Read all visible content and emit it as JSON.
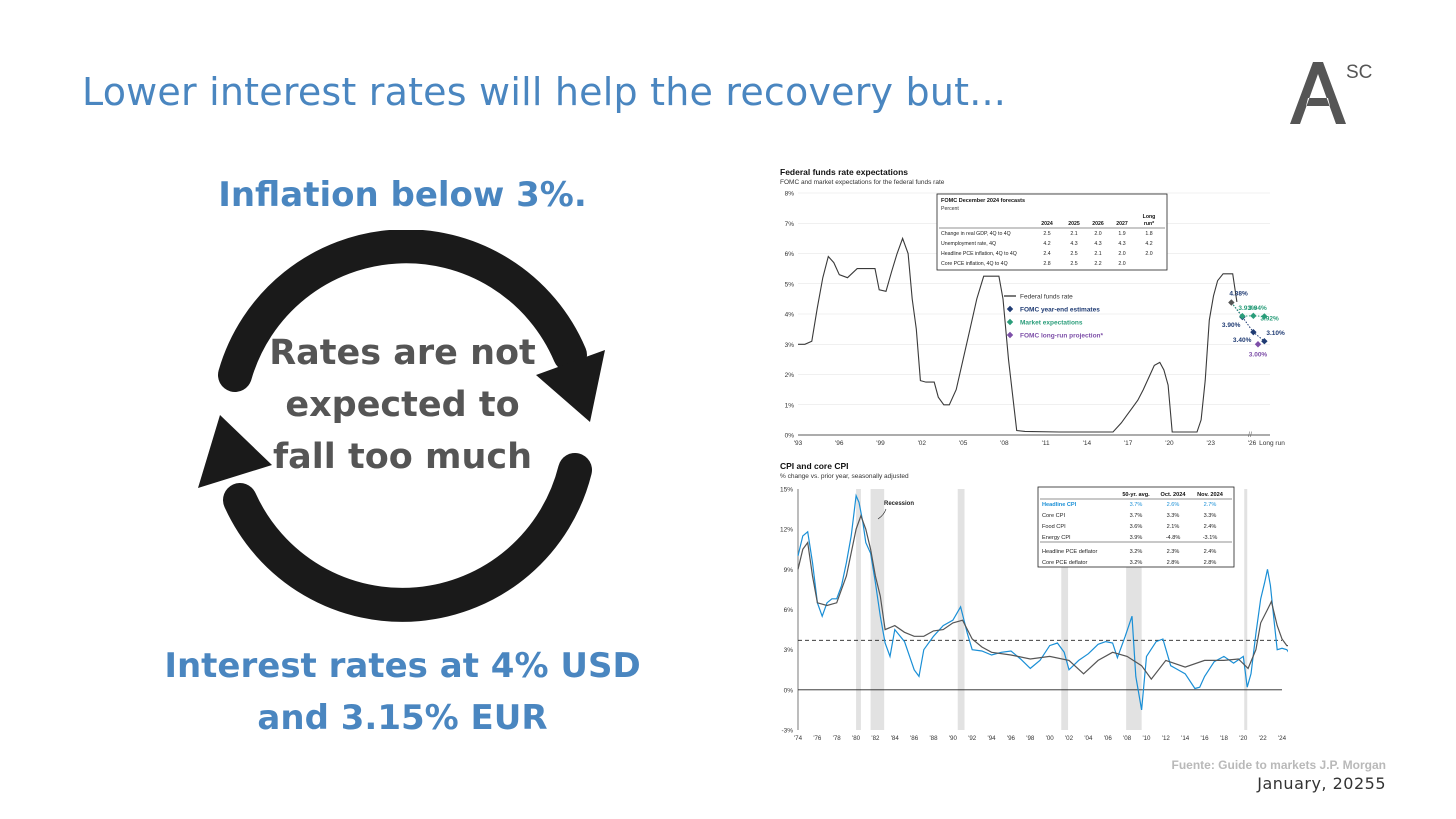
{
  "slide": {
    "title": "Lower interest rates will help the recovery but...",
    "logo_letter": "A",
    "logo_sup": "SC",
    "headline_top": "Inflation below 3%.",
    "center_text_lines": [
      "Rates are not",
      "expected to",
      "fall too much"
    ],
    "headline_bottom_lines": [
      "Interest rates at 4% USD",
      "and 3.15% EUR"
    ],
    "source": "Fuente: Guide to markets J.P. Morgan",
    "date": "January, 20255"
  },
  "colors": {
    "accent": "#4a86c0",
    "arrows": "#1a1a1a",
    "fomc": "#1f3b73",
    "market": "#2a9d7a",
    "longrun": "#7d4fa8",
    "headline_cpi": "#1a8fd6",
    "core_cpi": "#555555"
  },
  "chart_data": [
    {
      "type": "line",
      "title": "Federal funds rate expectations",
      "subtitle": "FOMC and market expectations for the federal funds rate",
      "ylim": [
        0,
        8
      ],
      "yticks": [
        "0%",
        "1%",
        "2%",
        "3%",
        "4%",
        "5%",
        "6%",
        "7%",
        "8%"
      ],
      "xticks": [
        "'93",
        "'96",
        "'99",
        "'02",
        "'05",
        "'08",
        "'11",
        "'14",
        "'17",
        "'20",
        "'23",
        "'26",
        "Long run"
      ],
      "legend": [
        "Federal funds rate",
        "FOMC year-end estimates",
        "Market expectations",
        "FOMC long-run projection*"
      ],
      "series": [
        {
          "name": "Federal funds rate",
          "x": [
            1993.0,
            1993.5,
            1994.0,
            1994.4,
            1994.8,
            1995.2,
            1995.6,
            1996.0,
            1996.6,
            1997.3,
            1998.0,
            1998.6,
            1998.9,
            1999.4,
            1999.8,
            2000.2,
            2000.6,
            2001.0,
            2001.3,
            2001.6,
            2001.9,
            2002.3,
            2002.9,
            2003.2,
            2003.6,
            2004.0,
            2004.5,
            2005.0,
            2005.5,
            2006.0,
            2006.5,
            2007.0,
            2007.6,
            2007.9,
            2008.3,
            2008.9,
            2009.5,
            2012.0,
            2015.9,
            2016.5,
            2016.9,
            2017.3,
            2017.7,
            2018.1,
            2018.5,
            2018.9,
            2019.3,
            2019.6,
            2019.9,
            2020.2,
            2021.5,
            2022.0,
            2022.3,
            2022.6,
            2022.9,
            2023.2,
            2023.5,
            2023.9,
            2024.6,
            2024.9
          ],
          "values": [
            3.0,
            3.0,
            3.1,
            4.2,
            5.2,
            5.9,
            5.7,
            5.3,
            5.2,
            5.5,
            5.5,
            5.5,
            4.8,
            4.75,
            5.4,
            6.0,
            6.5,
            6.0,
            4.5,
            3.5,
            1.8,
            1.75,
            1.75,
            1.25,
            1.0,
            1.0,
            1.5,
            2.5,
            3.5,
            4.5,
            5.25,
            5.25,
            5.25,
            4.5,
            2.5,
            0.15,
            0.12,
            0.1,
            0.1,
            0.4,
            0.65,
            0.9,
            1.15,
            1.5,
            1.9,
            2.3,
            2.4,
            2.15,
            1.65,
            0.1,
            0.1,
            0.1,
            0.5,
            1.8,
            3.8,
            4.6,
            5.1,
            5.33,
            5.33,
            4.4
          ]
        },
        {
          "name": "FOMC year-end estimates",
          "x": [
            "2024",
            "2025",
            "2026",
            "2027"
          ],
          "values": [
            4.38,
            3.9,
            3.4,
            3.1
          ],
          "labels": [
            "4.38%",
            "3.90%",
            "3.40%",
            "3.10%"
          ]
        },
        {
          "name": "Market expectations",
          "x": [
            "2025",
            "2026",
            "2027"
          ],
          "values": [
            3.93,
            3.94,
            3.92
          ],
          "labels": [
            "3.93%",
            "3.94%",
            "3.92%"
          ]
        },
        {
          "name": "FOMC long-run projection*",
          "x": [
            "Long run"
          ],
          "values": [
            3.0
          ],
          "labels": [
            "3.00%"
          ]
        }
      ],
      "table": {
        "title": "FOMC December 2024 forecasts",
        "subtitle": "Percent",
        "columns": [
          "2024",
          "2025",
          "2026",
          "2027",
          "Long run*"
        ],
        "rows": [
          {
            "label": "Change in real GDP, 4Q to 4Q",
            "values": [
              "2.5",
              "2.1",
              "2.0",
              "1.9",
              "1.8"
            ]
          },
          {
            "label": "Unemployment rate, 4Q",
            "values": [
              "4.2",
              "4.3",
              "4.3",
              "4.3",
              "4.2"
            ]
          },
          {
            "label": "Headline PCE inflation, 4Q to 4Q",
            "values": [
              "2.4",
              "2.5",
              "2.1",
              "2.0",
              "2.0"
            ]
          },
          {
            "label": "Core PCE inflation, 4Q to 4Q",
            "values": [
              "2.8",
              "2.5",
              "2.2",
              "2.0",
              ""
            ]
          }
        ]
      }
    },
    {
      "type": "line",
      "title": "CPI and core CPI",
      "subtitle": "% change vs. prior year, seasonally adjusted",
      "ylim": [
        -3,
        15
      ],
      "yticks": [
        "-3%",
        "0%",
        "3%",
        "6%",
        "9%",
        "12%",
        "15%"
      ],
      "xticks": [
        "'74",
        "'76",
        "'78",
        "'80",
        "'82",
        "'84",
        "'86",
        "'88",
        "'90",
        "'92",
        "'94",
        "'96",
        "'98",
        "'00",
        "'02",
        "'04",
        "'06",
        "'08",
        "'10",
        "'12",
        "'14",
        "'16",
        "'18",
        "'20",
        "'22",
        "'24"
      ],
      "reference_line": {
        "label": "50-yr avg.",
        "value": 3.7
      },
      "recession_label": "Recession",
      "recessions": [
        [
          1980.0,
          1980.5
        ],
        [
          1981.5,
          1982.9
        ],
        [
          1990.5,
          1991.2
        ],
        [
          2001.2,
          2001.9
        ],
        [
          2007.9,
          2009.5
        ],
        [
          2020.1,
          2020.4
        ]
      ],
      "series": [
        {
          "name": "Headline CPI",
          "x": [
            1974.0,
            1974.5,
            1975.0,
            1975.5,
            1976.0,
            1976.5,
            1977.0,
            1977.5,
            1978.0,
            1978.5,
            1979.0,
            1979.5,
            1980.0,
            1980.3,
            1980.7,
            1981.0,
            1981.5,
            1982.0,
            1982.5,
            1983.0,
            1983.5,
            1984.0,
            1985.0,
            1986.0,
            1986.5,
            1987.0,
            1988.0,
            1989.0,
            1990.0,
            1990.8,
            1991.5,
            1992.0,
            1993.0,
            1994.0,
            1995.0,
            1996.0,
            1997.0,
            1998.0,
            1999.0,
            2000.0,
            2000.8,
            2001.5,
            2002.0,
            2003.0,
            2004.0,
            2005.0,
            2005.8,
            2006.5,
            2007.0,
            2007.8,
            2008.5,
            2008.9,
            2009.5,
            2010.0,
            2011.0,
            2011.7,
            2012.5,
            2013.0,
            2014.0,
            2015.0,
            2015.5,
            2016.0,
            2017.0,
            2018.0,
            2019.0,
            2020.0,
            2020.4,
            2020.8,
            2021.3,
            2021.8,
            2022.2,
            2022.5,
            2022.8,
            2023.2,
            2023.5,
            2024.0,
            2024.5,
            2024.8
          ],
          "values": [
            10.0,
            11.5,
            11.8,
            9.5,
            6.5,
            5.5,
            6.5,
            6.8,
            6.8,
            7.8,
            9.5,
            11.5,
            14.5,
            14.0,
            12.5,
            11.0,
            10.2,
            8.0,
            5.5,
            3.5,
            2.5,
            4.5,
            3.6,
            1.5,
            1.0,
            3.0,
            4.0,
            4.8,
            5.2,
            6.2,
            4.2,
            3.0,
            2.9,
            2.6,
            2.8,
            2.9,
            2.3,
            1.6,
            2.2,
            3.3,
            3.5,
            2.8,
            1.5,
            2.2,
            2.7,
            3.4,
            3.6,
            3.5,
            2.4,
            4.0,
            5.5,
            1.0,
            -1.5,
            2.5,
            3.6,
            3.8,
            1.8,
            1.6,
            1.2,
            0.1,
            0.2,
            1.0,
            2.1,
            2.5,
            2.0,
            2.5,
            0.2,
            1.2,
            4.2,
            6.8,
            8.0,
            9.0,
            7.8,
            5.0,
            3.0,
            3.1,
            3.0,
            2.7
          ]
        },
        {
          "name": "Core CPI",
          "x": [
            1974.0,
            1974.5,
            1975.0,
            1975.5,
            1976.0,
            1977.0,
            1978.0,
            1979.0,
            1980.0,
            1980.5,
            1981.0,
            1981.5,
            1982.0,
            1982.5,
            1983.0,
            1984.0,
            1985.0,
            1986.0,
            1987.0,
            1988.0,
            1989.0,
            1990.0,
            1991.0,
            1992.0,
            1993.0,
            1994.0,
            1996.0,
            1998.0,
            2000.0,
            2002.0,
            2003.5,
            2005.0,
            2006.5,
            2008.0,
            2009.5,
            2010.5,
            2012.0,
            2014.0,
            2016.0,
            2018.0,
            2019.5,
            2020.5,
            2021.3,
            2021.8,
            2022.5,
            2022.9,
            2023.5,
            2024.0,
            2024.5,
            2024.8
          ],
          "values": [
            9.0,
            10.5,
            11.0,
            8.5,
            6.5,
            6.3,
            6.5,
            8.5,
            12.0,
            13.0,
            12.0,
            10.5,
            8.5,
            7.0,
            4.5,
            4.8,
            4.3,
            4.0,
            4.0,
            4.4,
            4.5,
            5.0,
            5.2,
            3.8,
            3.2,
            2.8,
            2.6,
            2.3,
            2.5,
            2.2,
            1.2,
            2.2,
            2.8,
            2.5,
            1.8,
            0.8,
            2.2,
            1.7,
            2.2,
            2.2,
            2.3,
            1.6,
            3.0,
            5.0,
            6.0,
            6.6,
            4.8,
            3.8,
            3.3,
            3.3
          ]
        }
      ],
      "table": {
        "columns": [
          "50-yr. avg.",
          "Oct. 2024",
          "Nov. 2024"
        ],
        "rows": [
          {
            "label": "Headline CPI",
            "values": [
              "3.7%",
              "2.6%",
              "2.7%"
            ],
            "highlight": true
          },
          {
            "label": "Core CPI",
            "values": [
              "3.7%",
              "3.3%",
              "3.3%"
            ]
          },
          {
            "label": "Food CPI",
            "values": [
              "3.6%",
              "2.1%",
              "2.4%"
            ]
          },
          {
            "label": "Energy CPI",
            "values": [
              "3.9%",
              "-4.8%",
              "-3.1%"
            ]
          },
          {
            "label": "Headline PCE deflator",
            "values": [
              "3.2%",
              "2.3%",
              "2.4%"
            ]
          },
          {
            "label": "Core PCE deflator",
            "values": [
              "3.2%",
              "2.8%",
              "2.8%"
            ]
          }
        ]
      }
    }
  ]
}
